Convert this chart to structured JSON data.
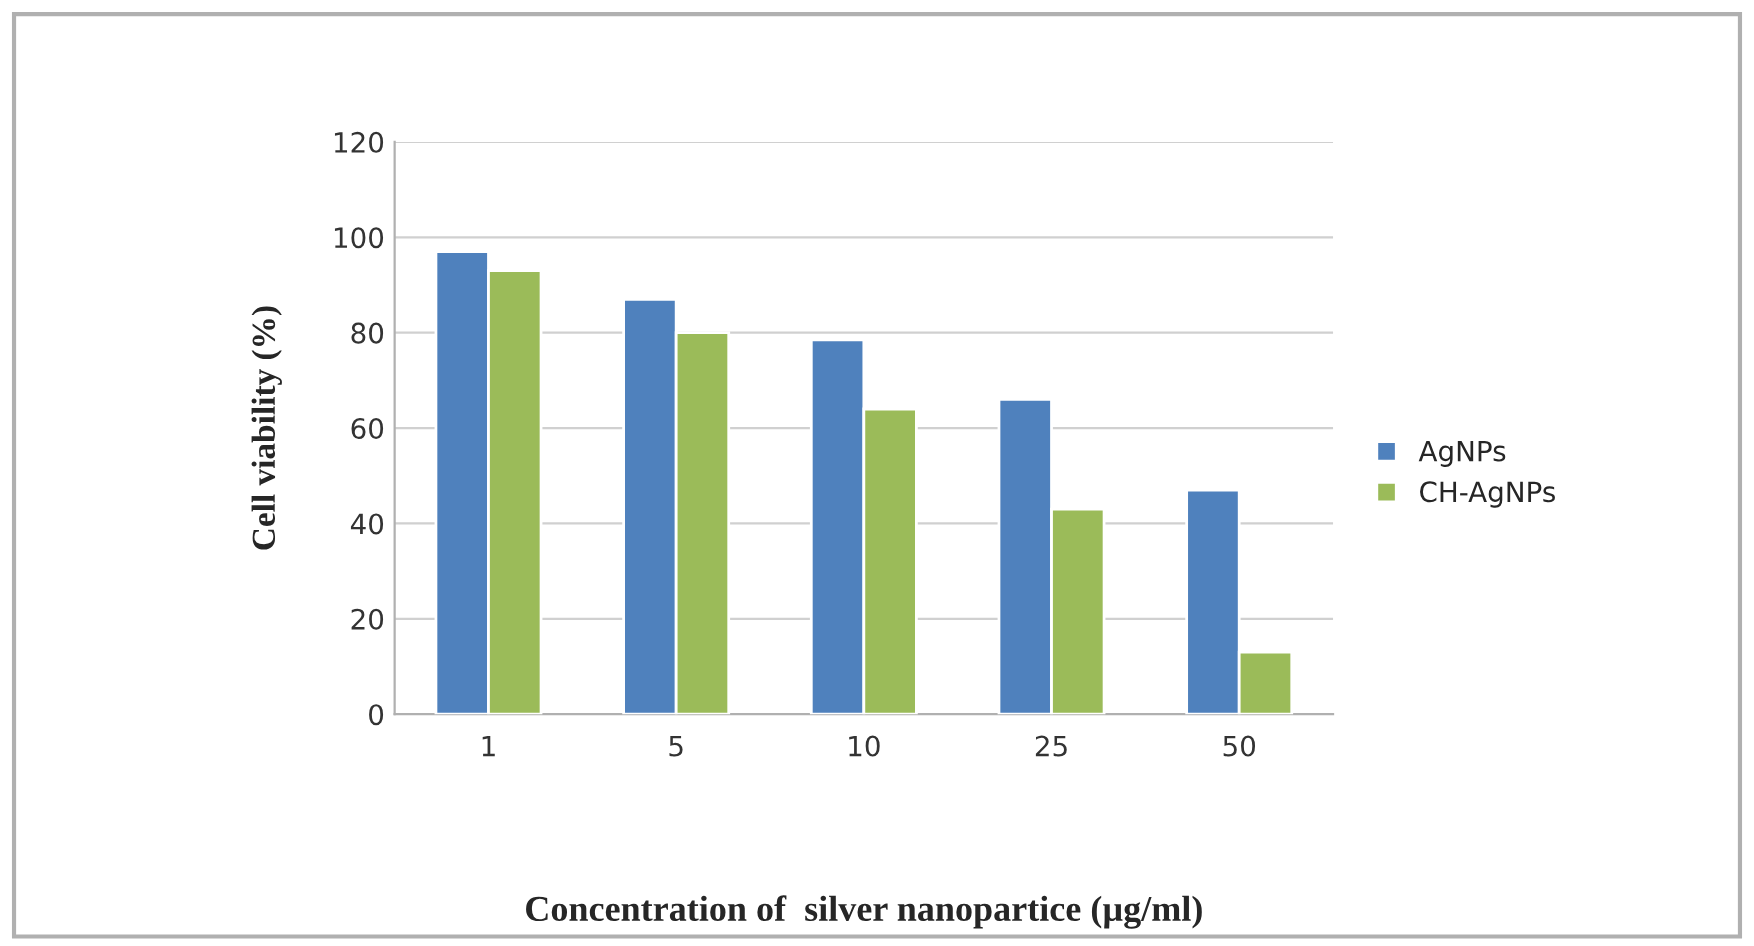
{
  "chart_data": {
    "type": "bar",
    "xlabel": "Concentration of  silver nanopartice (µg/ml)",
    "ylabel": "Cell viability (%)",
    "categories": [
      "1",
      "5",
      "10",
      "25",
      "50"
    ],
    "series": [
      {
        "name": "AgNPs",
        "color": "#4f81bd",
        "values": [
          97,
          87,
          78.5,
          66,
          47
        ]
      },
      {
        "name": "CH-AgNPs",
        "color": "#9bbb59",
        "values": [
          93,
          80,
          64,
          43,
          13
        ]
      }
    ],
    "ylim": [
      0,
      120
    ],
    "yticks": [
      0,
      20,
      40,
      60,
      80,
      100,
      120
    ],
    "grid": "y",
    "legend": "right"
  }
}
